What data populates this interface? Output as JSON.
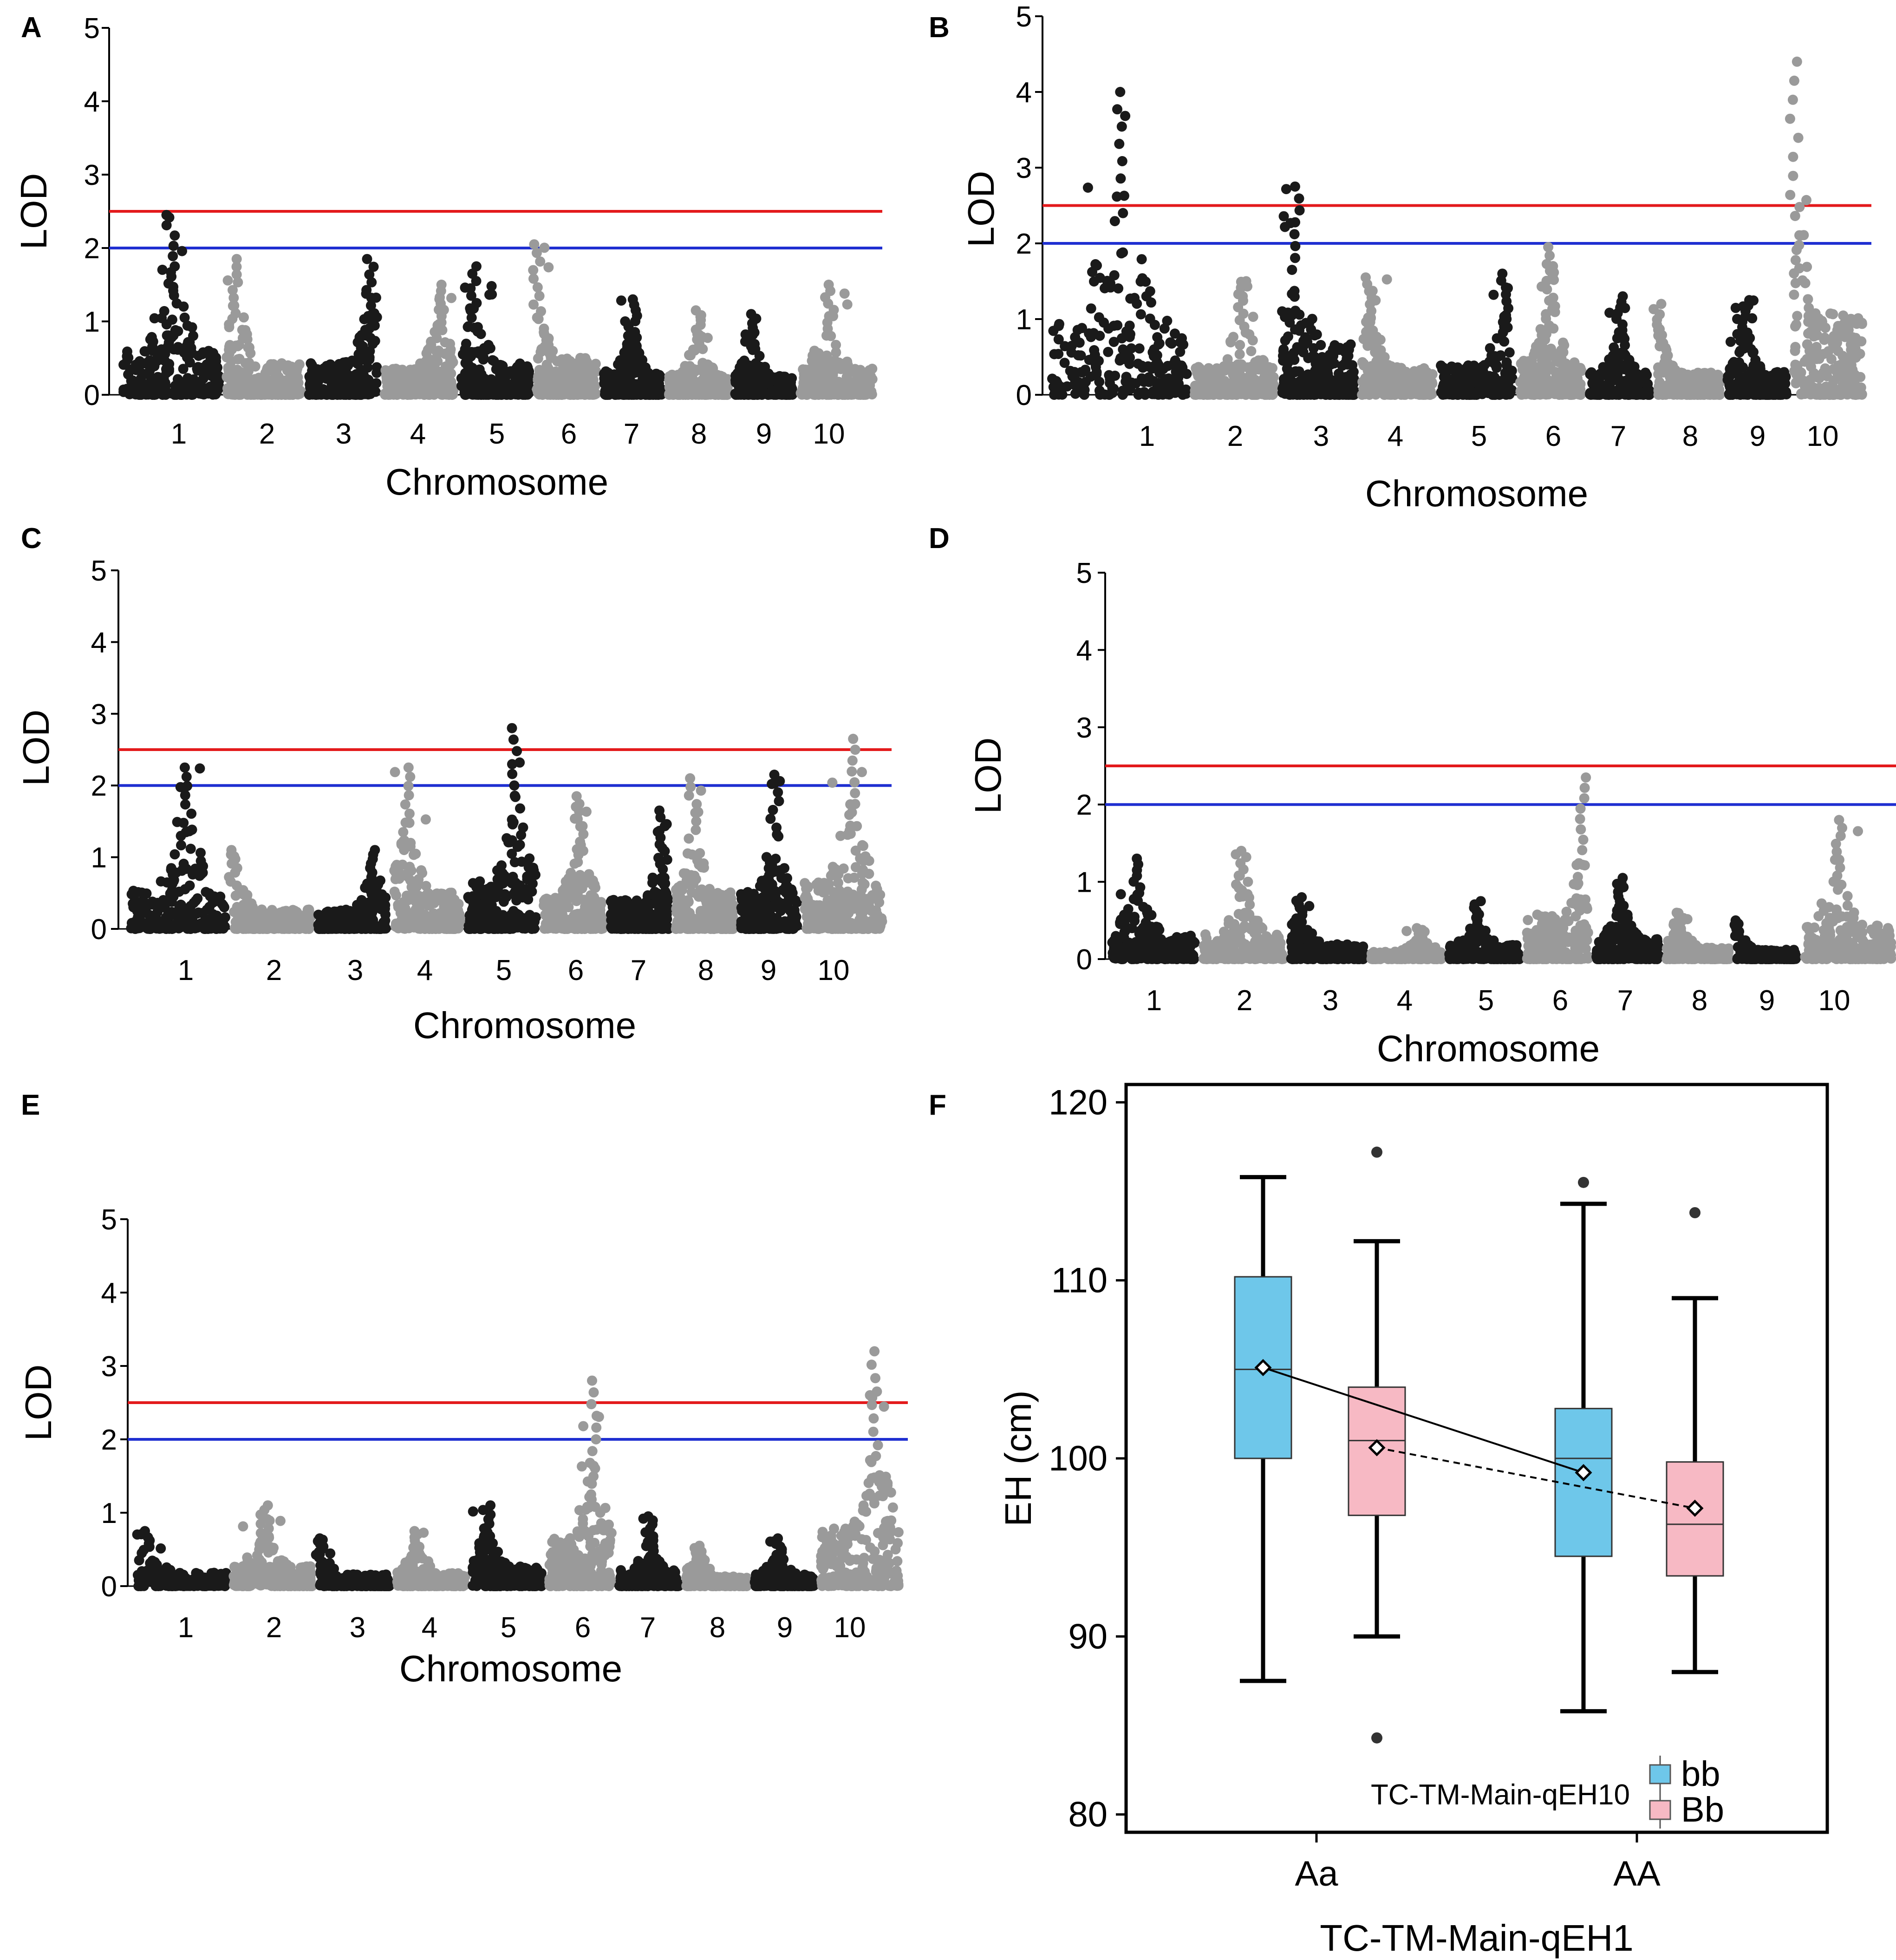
{
  "figure": {
    "colors": {
      "dark_points": "#1a1a1a",
      "light_points": "#9a9a9a",
      "threshold_high": "#e31a1c",
      "threshold_low": "#1f2fd1",
      "bb_fill": "#6ec7ea",
      "Bb_fill": "#f7b9c4"
    }
  },
  "chart_data": [
    {
      "panel": "A",
      "type": "scatter",
      "subtype": "manhattan",
      "xlabel": "Chromosome",
      "ylabel": "LOD",
      "ylim": [
        0,
        5
      ],
      "yticks": [
        "0",
        "1",
        "2",
        "3",
        "4",
        "5"
      ],
      "chromosomes": [
        "1",
        "2",
        "3",
        "4",
        "5",
        "6",
        "7",
        "8",
        "9",
        "10"
      ],
      "thresholds": [
        {
          "value": 2.5,
          "color": "red"
        },
        {
          "value": 2.0,
          "color": "blue"
        }
      ],
      "peaks": [
        0.5,
        1.1,
        0.9,
        0.8,
        1.2,
        2.0,
        0.5,
        1.5,
        2.3,
        1.4
      ],
      "max_lod_by_chr": [
        2.45,
        1.85,
        1.85,
        1.5,
        1.75,
        2.05,
        1.3,
        1.15,
        1.1,
        1.5
      ]
    },
    {
      "panel": "B",
      "type": "scatter",
      "subtype": "manhattan",
      "xlabel": "Chromosome",
      "ylabel": "LOD",
      "ylim": [
        0,
        5
      ],
      "yticks": [
        "0",
        "1",
        "2",
        "3",
        "4",
        "5"
      ],
      "chromosomes": [
        "1",
        "2",
        "3",
        "4",
        "5",
        "6",
        "7",
        "8",
        "9",
        "10"
      ],
      "thresholds": [
        {
          "value": 2.5,
          "color": "red"
        },
        {
          "value": 2.0,
          "color": "blue"
        }
      ],
      "peaks": [
        2.5,
        1.6,
        1.2,
        1.1,
        0.9,
        1.5,
        1.5,
        1.0,
        1.3,
        2.0
      ],
      "max_lod_by_chr": [
        4.0,
        1.5,
        2.75,
        1.55,
        1.6,
        1.95,
        1.3,
        1.2,
        1.25,
        4.4
      ]
    },
    {
      "panel": "C",
      "type": "scatter",
      "subtype": "manhattan",
      "xlabel": "Chromosome",
      "ylabel": "LOD",
      "ylim": [
        0,
        5
      ],
      "yticks": [
        "0",
        "1",
        "2",
        "3",
        "4",
        "5"
      ],
      "chromosomes": [
        "1",
        "2",
        "3",
        "4",
        "5",
        "6",
        "7",
        "8",
        "9",
        "10"
      ],
      "thresholds": [
        {
          "value": 2.5,
          "color": "red"
        },
        {
          "value": 2.0,
          "color": "blue"
        }
      ],
      "peaks": [
        1.6,
        1.0,
        0.8,
        1.2,
        0.7,
        1.6,
        1.9,
        1.3,
        1.6,
        2.6
      ],
      "max_lod_by_chr": [
        2.25,
        1.1,
        1.1,
        2.25,
        2.8,
        1.85,
        1.65,
        2.1,
        2.15,
        2.65
      ]
    },
    {
      "panel": "D",
      "type": "scatter",
      "subtype": "manhattan",
      "xlabel": "Chromosome",
      "ylabel": "LOD",
      "ylim": [
        0,
        5
      ],
      "yticks": [
        "0",
        "1",
        "2",
        "3",
        "4",
        "5"
      ],
      "chromosomes": [
        "1",
        "2",
        "3",
        "4",
        "5",
        "6",
        "7",
        "8",
        "9",
        "10"
      ],
      "thresholds": [
        {
          "value": 2.5,
          "color": "red"
        },
        {
          "value": 2.0,
          "color": "blue"
        }
      ],
      "peaks": [
        1.3,
        1.5,
        1.1,
        0.7,
        1.4,
        1.9,
        1.4,
        1.2,
        1.0,
        1.4
      ],
      "max_lod_by_chr": [
        1.3,
        1.4,
        0.8,
        0.4,
        0.75,
        2.35,
        1.05,
        0.6,
        0.5,
        1.8
      ]
    },
    {
      "panel": "E",
      "type": "scatter",
      "subtype": "manhattan",
      "xlabel": "Chromosome",
      "ylabel": "LOD",
      "ylim": [
        0,
        5
      ],
      "yticks": [
        "0",
        "1",
        "2",
        "3",
        "4",
        "5"
      ],
      "chromosomes": [
        "1",
        "2",
        "3",
        "4",
        "5",
        "6",
        "7",
        "8",
        "9",
        "10"
      ],
      "thresholds": [
        {
          "value": 2.5,
          "color": "red"
        },
        {
          "value": 2.0,
          "color": "blue"
        }
      ],
      "peaks": [
        1.1,
        1.4,
        1.0,
        1.3,
        1.2,
        1.7,
        1.5,
        1.2,
        1.4,
        1.7
      ],
      "max_lod_by_chr": [
        0.75,
        1.1,
        0.65,
        0.75,
        1.1,
        2.8,
        0.95,
        0.55,
        0.65,
        3.2
      ]
    },
    {
      "panel": "F",
      "type": "box",
      "xlabel": "TC-TM-Main-qEH1",
      "ylabel": "EH (cm)",
      "ylim": [
        79,
        121
      ],
      "yticks": [
        "80",
        "90",
        "100",
        "110",
        "120"
      ],
      "categories": [
        "Aa",
        "AA"
      ],
      "legend_title": "TC-TM-Main-qEH10",
      "legend": [
        "bb",
        "Bb"
      ],
      "boxes": [
        {
          "group": "Aa",
          "genotype": "bb",
          "min": 87.5,
          "q1": 100.0,
          "median": 105.0,
          "q3": 110.2,
          "max": 115.8,
          "mean": 105.1,
          "outliers": []
        },
        {
          "group": "Aa",
          "genotype": "Bb",
          "min": 90.0,
          "q1": 96.8,
          "median": 101.0,
          "q3": 104.0,
          "max": 112.2,
          "mean": 100.6,
          "outliers": [
            117.2,
            84.3
          ]
        },
        {
          "group": "AA",
          "genotype": "bb",
          "min": 85.8,
          "q1": 94.5,
          "median": 100.0,
          "q3": 102.8,
          "max": 114.3,
          "mean": 99.2,
          "outliers": [
            115.5
          ]
        },
        {
          "group": "AA",
          "genotype": "Bb",
          "min": 88.0,
          "q1": 93.4,
          "median": 96.3,
          "q3": 99.8,
          "max": 109.0,
          "mean": 97.2,
          "outliers": [
            113.8
          ]
        }
      ]
    }
  ]
}
